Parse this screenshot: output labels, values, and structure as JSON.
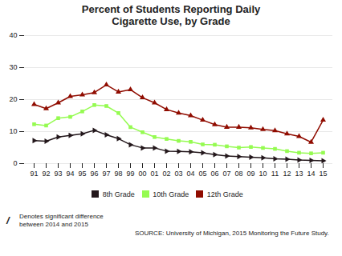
{
  "chart_data": {
    "type": "line",
    "title": "Percent of Students Reporting Daily\nCigarette Use, by Grade",
    "categories": [
      "91",
      "92",
      "93",
      "94",
      "95",
      "96",
      "97",
      "98",
      "99",
      "00",
      "01",
      "02",
      "03",
      "04",
      "05",
      "06",
      "07",
      "08",
      "09",
      "10",
      "11",
      "12",
      "13",
      "14",
      "15"
    ],
    "series": [
      {
        "name": "8th Grade",
        "marker": "triangle-right",
        "values": [
          7.2,
          7.0,
          8.3,
          8.8,
          9.3,
          10.4,
          9.0,
          7.8,
          5.9,
          4.9,
          4.9,
          3.9,
          3.8,
          3.7,
          3.4,
          2.8,
          2.4,
          2.2,
          2.0,
          1.8,
          1.5,
          1.4,
          1.1,
          1.0,
          0.9
        ]
      },
      {
        "name": "10th Grade",
        "marker": "square",
        "values": [
          12.3,
          11.9,
          14.2,
          14.6,
          16.3,
          18.3,
          18.0,
          15.8,
          11.4,
          9.8,
          8.3,
          7.7,
          7.1,
          6.8,
          6.0,
          5.9,
          5.4,
          5.0,
          5.2,
          4.9,
          4.6,
          3.9,
          3.4,
          3.2,
          3.4
        ]
      },
      {
        "name": "12th Grade",
        "marker": "triangle-up",
        "values": [
          18.5,
          17.2,
          19.0,
          21.0,
          21.5,
          22.2,
          24.6,
          22.4,
          23.1,
          20.6,
          19.0,
          16.9,
          15.8,
          15.0,
          13.6,
          12.2,
          11.4,
          11.4,
          11.2,
          10.7,
          10.3,
          9.3,
          8.5,
          6.7,
          13.6
        ]
      }
    ],
    "ylim": [
      0,
      40
    ],
    "yticks": [
      0,
      10,
      20,
      30,
      40
    ],
    "grid": true,
    "legend": "bottom",
    "annotations": [
      "/",
      "Denotes significant difference\nbetween 2014 and 2015",
      "SOURCE: University of Michigan, 2015 Monitoring the Future Study."
    ]
  }
}
